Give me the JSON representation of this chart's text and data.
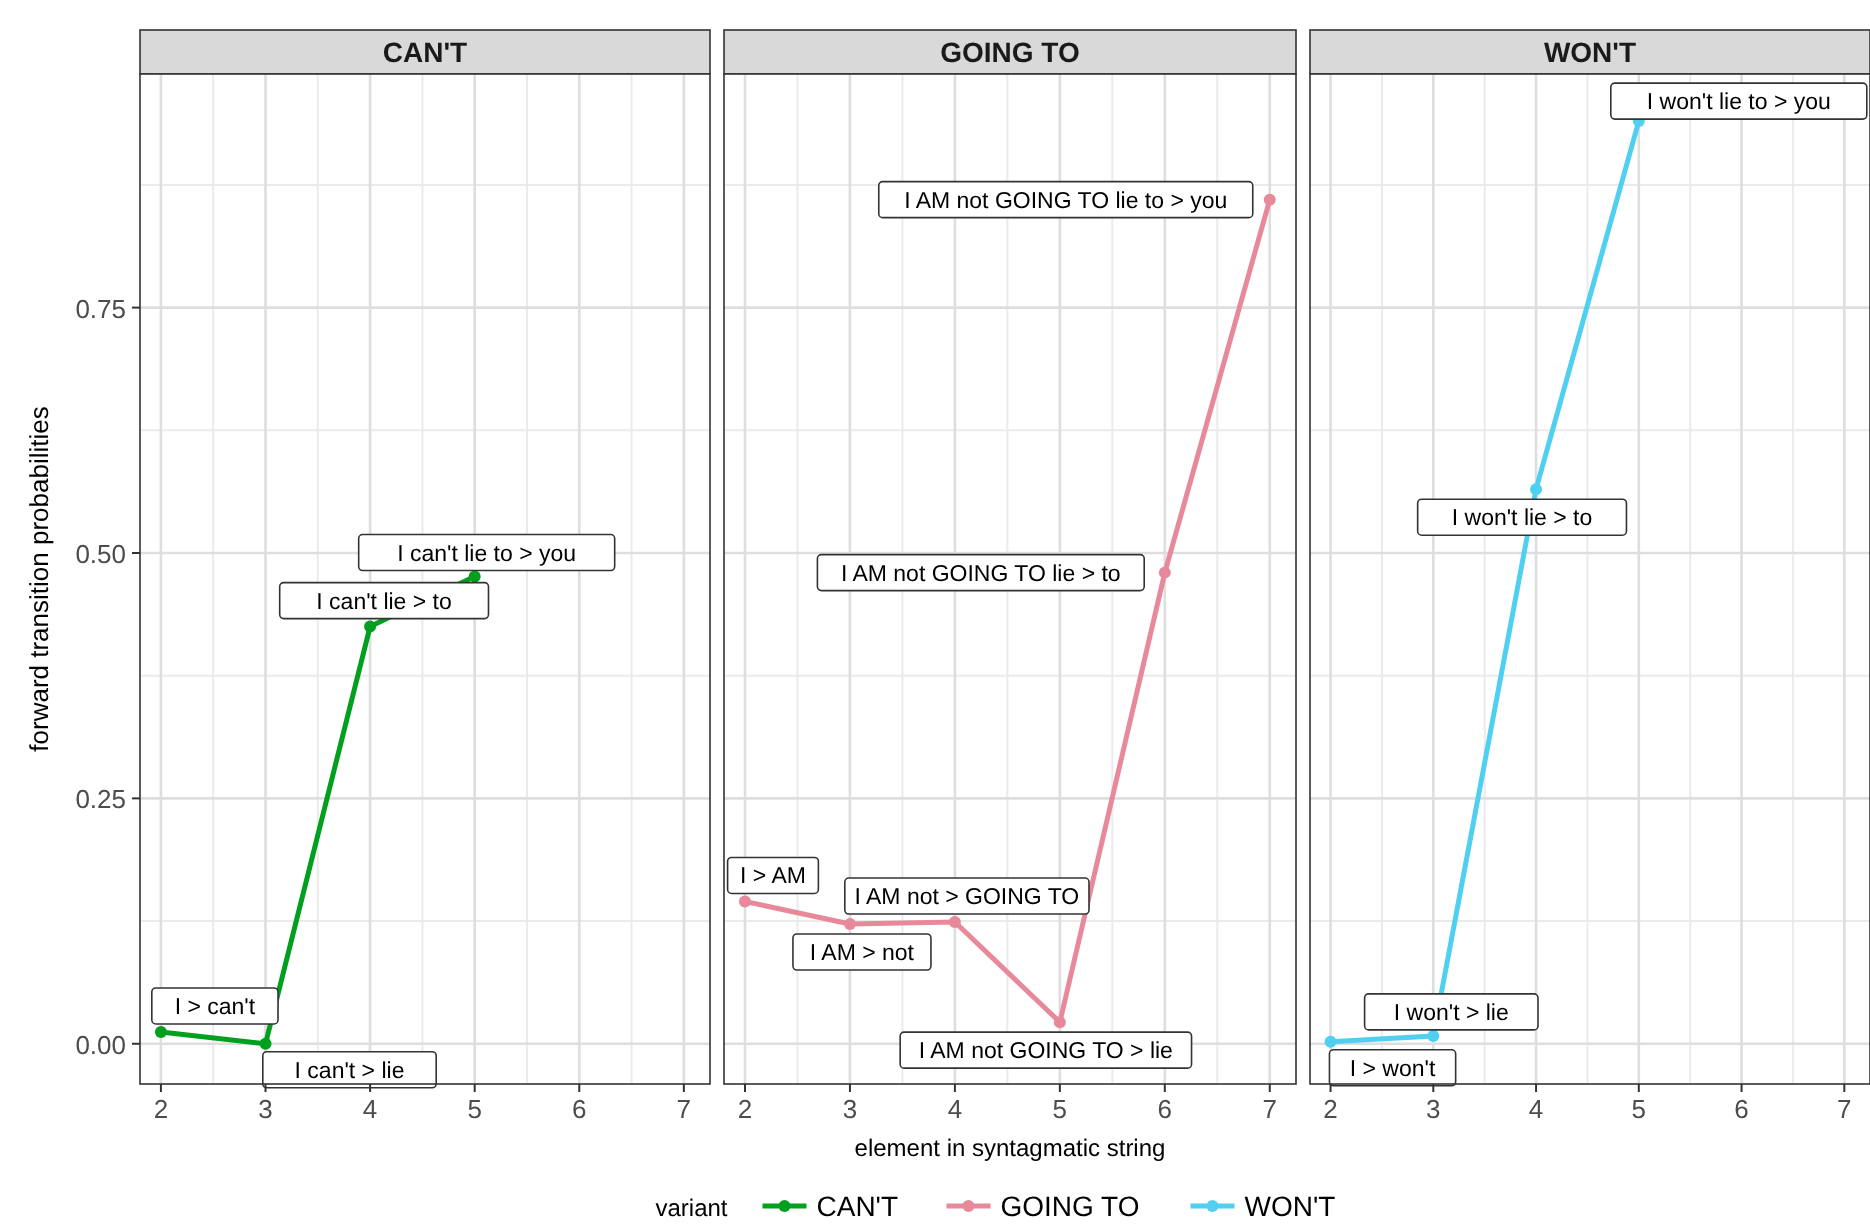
{
  "chart_data": [
    {
      "type": "line",
      "title": "CAN'T",
      "ylabel": "forward transition probabilities",
      "x": [
        2,
        3,
        4,
        5
      ],
      "xlim": [
        1.8,
        7.25
      ],
      "ylim": [
        -0.041,
        0.988
      ],
      "xticks": [
        2,
        3,
        4,
        5,
        6,
        7
      ],
      "yticks": [
        {
          "value": 0,
          "label": "0.00"
        },
        {
          "value": 0.25,
          "label": "0.25"
        },
        {
          "value": 0.5,
          "label": "0.50"
        },
        {
          "value": 0.75,
          "label": "0.75"
        }
      ],
      "grid": true,
      "marker": "circle",
      "legend": "bottom",
      "legend_title": "variant",
      "series": [
        {
          "name": "CAN'T",
          "color": "#00a01e",
          "values": [
            0.012,
            0,
            0.425,
            0.476
          ]
        }
      ],
      "annotations": [
        {
          "text": "I > can't",
          "x": 2,
          "y": 0.012
        },
        {
          "text": "I can't > lie",
          "x": 3,
          "y": 0
        },
        {
          "text": "I can't lie > to",
          "x": 4,
          "y": 0.425
        },
        {
          "text": "I can't lie to > you",
          "x": 5,
          "y": 0.476
        }
      ]
    },
    {
      "type": "line",
      "title": "GOING TO",
      "xlabel": "element in syntagmatic string",
      "x": [
        2,
        3,
        4,
        5,
        6,
        7
      ],
      "xlim": [
        1.8,
        7.25
      ],
      "ylim": [
        -0.041,
        0.988
      ],
      "xticks": [
        2,
        3,
        4,
        5,
        6,
        7
      ],
      "yticks": [
        0,
        0.25,
        0.5,
        0.75
      ],
      "tick_labels": "x",
      "grid": true,
      "marker": "circle",
      "legend": "bottom",
      "series": [
        {
          "name": "GOING TO",
          "color": "#e8899b",
          "values": [
            0.145,
            0.122,
            0.124,
            0.022,
            0.48,
            0.86
          ]
        }
      ],
      "annotations": [
        {
          "text": "I > AM",
          "x": 2,
          "y": 0.145
        },
        {
          "text": "I AM > not",
          "x": 3,
          "y": 0.122
        },
        {
          "text": "I AM not > GOING TO",
          "x": 4,
          "y": 0.124
        },
        {
          "text": "I AM not GOING TO > lie",
          "x": 5,
          "y": 0.022
        },
        {
          "text": "I AM not GOING TO lie > to",
          "x": 6,
          "y": 0.48
        },
        {
          "text": "I AM not GOING TO lie to > you",
          "x": 7,
          "y": 0.86
        }
      ]
    },
    {
      "type": "line",
      "title": "WON'T",
      "x": [
        2,
        3,
        4,
        5
      ],
      "xlim": [
        1.8,
        7.25
      ],
      "ylim": [
        -0.041,
        0.988
      ],
      "xticks": [
        2,
        3,
        4,
        5,
        6,
        7
      ],
      "yticks": [
        0,
        0.25,
        0.5,
        0.75
      ],
      "tick_labels": "x",
      "grid": true,
      "marker": "circle",
      "legend": "bottom",
      "series": [
        {
          "name": "WON'T",
          "color": "#4fd0f0",
          "values": [
            0.002,
            0.008,
            0.565,
            0.94
          ]
        }
      ],
      "annotations": [
        {
          "text": "I > won't",
          "x": 2,
          "y": 0.002
        },
        {
          "text": "I won't > lie",
          "x": 3,
          "y": 0.008
        },
        {
          "text": "I won't lie > to",
          "x": 4,
          "y": 0.565
        },
        {
          "text": "I won't lie to > you",
          "x": 5,
          "y": 0.94
        }
      ]
    }
  ]
}
